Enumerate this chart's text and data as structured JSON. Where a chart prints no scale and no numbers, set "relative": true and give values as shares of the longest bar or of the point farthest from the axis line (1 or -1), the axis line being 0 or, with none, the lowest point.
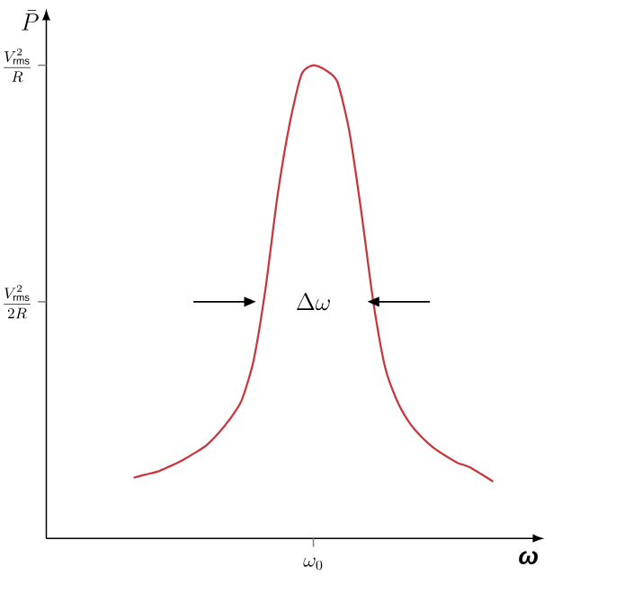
{
  "chart_data": {
    "type": "line",
    "relative": true,
    "xlabel": "ω",
    "categories": [
      null,
      null,
      null,
      null,
      null,
      null,
      null,
      null,
      null,
      null,
      null,
      null,
      null,
      null,
      null,
      null,
      null,
      null,
      null,
      null,
      null,
      null,
      null,
      null,
      null,
      null,
      null,
      null,
      null,
      null,
      null
    ],
    "values": [
      0.128,
      0.135,
      0.141,
      0.152,
      0.164,
      0.179,
      0.195,
      0.22,
      0.251,
      0.291,
      0.375,
      0.527,
      0.723,
      0.874,
      0.98,
      1.0,
      0.99,
      0.965,
      0.86,
      0.69,
      0.5,
      0.36,
      0.29,
      0.245,
      0.215,
      0.192,
      0.175,
      0.16,
      0.151,
      0.136,
      0.12
    ],
    "color": "#c8363b",
    "annotations": [
      "\\Delta\\omega",
      "\\frac{V_{\\mathrm{rms}}^2}{R}",
      "\\frac{V_{\\mathrm{rms}}^2}{2R}",
      "\\omega_0",
      "\\bar{P}"
    ]
  }
}
